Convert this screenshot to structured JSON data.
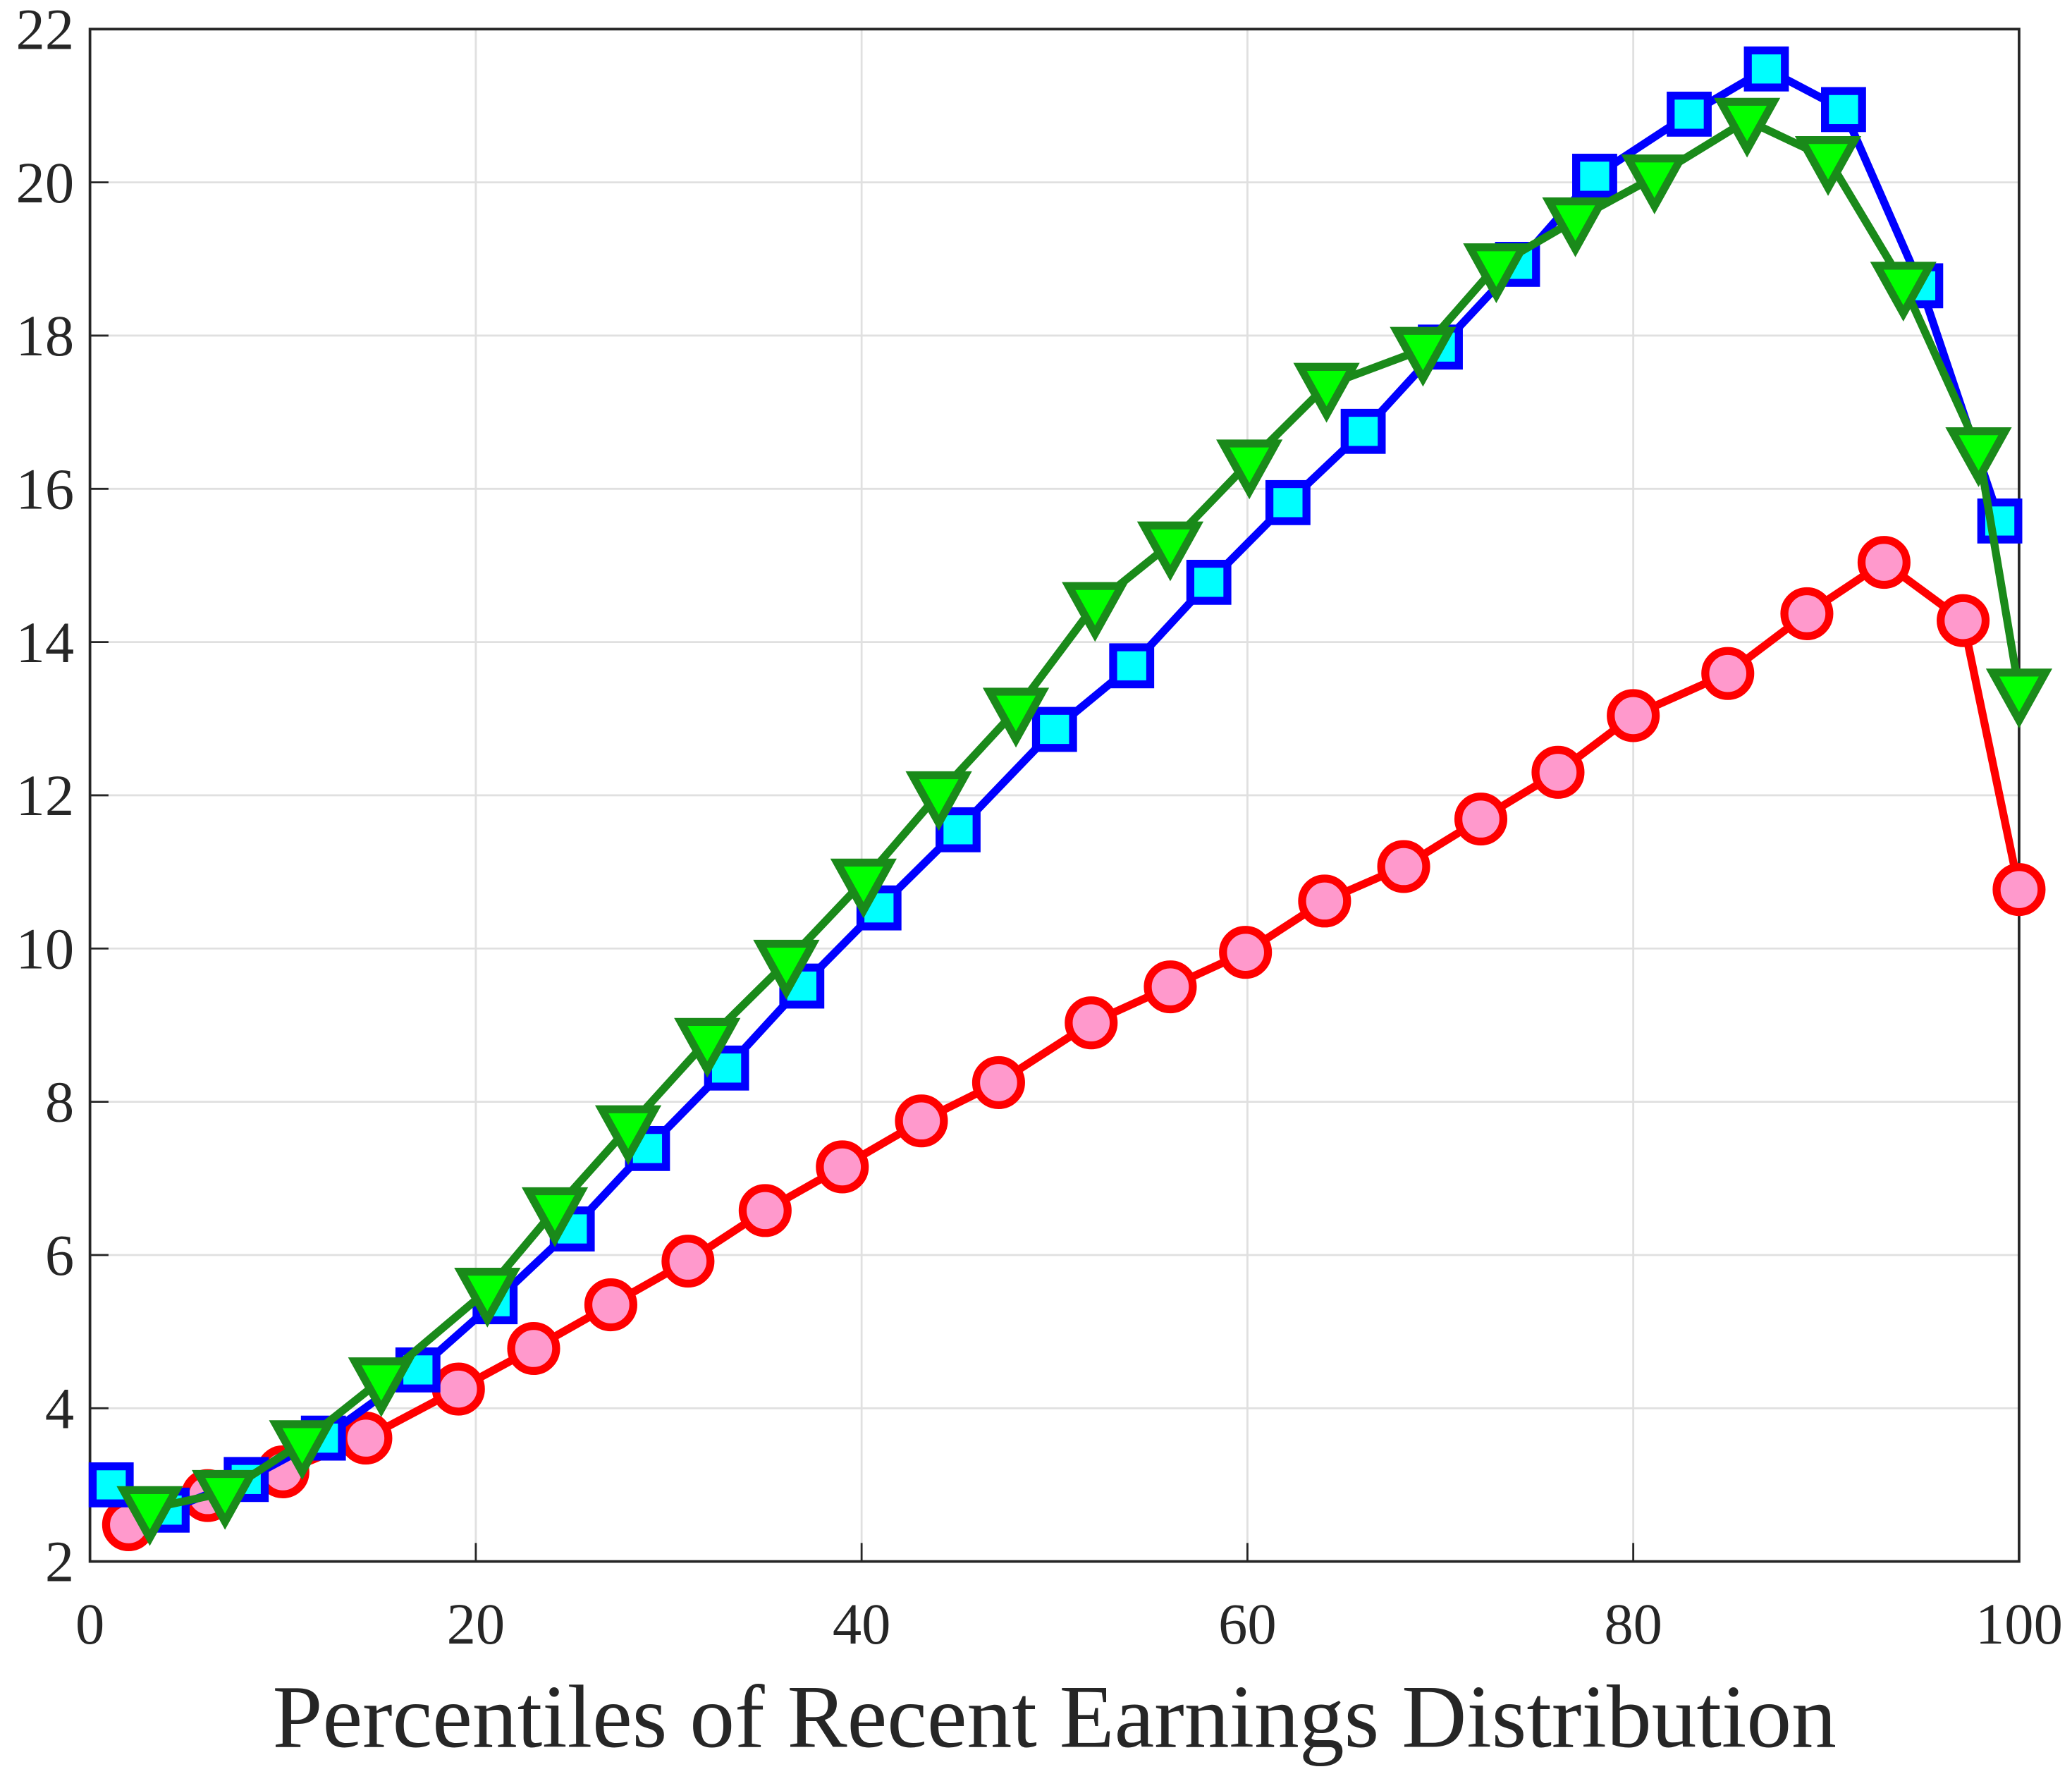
{
  "chart_data": {
    "type": "line",
    "xlabel": "Percentiles of Recent Earnings Distribution",
    "xlim": [
      0,
      100
    ],
    "xticks": [
      0,
      20,
      40,
      60,
      80,
      100
    ],
    "ylim": [
      2,
      22
    ],
    "yticks": [
      2,
      4,
      6,
      8,
      10,
      12,
      14,
      16,
      18,
      20,
      22
    ],
    "grid": true,
    "series": [
      {
        "color": "#ff0000",
        "marker": "circle",
        "marker_color": "#ff99cc",
        "x": [
          2.0,
          6.1,
          10.0,
          14.3,
          19.1,
          23.0,
          27.0,
          31.0,
          35.0,
          39.0,
          43.1,
          47.1,
          51.9,
          56.0,
          59.9,
          64.0,
          68.1,
          72.1,
          76.1,
          80.0,
          84.9,
          89.0,
          93.0,
          97.1,
          100
        ],
        "values": [
          2.48,
          2.86,
          3.17,
          3.61,
          4.25,
          4.78,
          5.35,
          5.92,
          6.58,
          7.15,
          7.75,
          8.25,
          9.03,
          9.5,
          9.95,
          10.62,
          11.07,
          11.69,
          12.3,
          13.04,
          13.59,
          14.37,
          15.04,
          14.28,
          10.77
        ]
      },
      {
        "color": "#0000ff",
        "marker": "square",
        "marker_color": "#00ffff",
        "x": [
          1.1,
          4.0,
          8.1,
          12.1,
          17.0,
          21.0,
          25.0,
          28.9,
          33.0,
          36.9,
          40.9,
          45.0,
          50.0,
          54.0,
          58.0,
          62.1,
          66.0,
          70.0,
          74.0,
          78.0,
          82.9,
          86.9,
          90.9,
          94.9,
          99.0
        ],
        "values": [
          3.0,
          2.67,
          3.07,
          3.61,
          4.5,
          5.39,
          6.34,
          7.39,
          8.44,
          9.51,
          10.53,
          11.55,
          12.86,
          13.69,
          14.78,
          15.82,
          16.75,
          17.85,
          18.93,
          20.08,
          20.89,
          21.48,
          20.95,
          18.65,
          15.58
        ]
      },
      {
        "color": "#1a8a1a",
        "marker": "triangle-down",
        "marker_color": "#00ff00",
        "x": [
          3.1,
          7.0,
          11.0,
          15.1,
          20.6,
          24.1,
          27.9,
          32.0,
          36.1,
          40.1,
          44.0,
          48.0,
          52.1,
          56.0,
          60.1,
          64.1,
          69.1,
          72.9,
          77.0,
          81.1,
          85.9,
          90.1,
          94.0,
          97.9,
          100
        ],
        "values": [
          2.69,
          2.9,
          3.55,
          4.37,
          5.54,
          6.59,
          7.66,
          8.8,
          9.82,
          10.88,
          12.02,
          13.11,
          14.49,
          15.28,
          16.35,
          17.35,
          17.82,
          18.91,
          19.51,
          20.07,
          20.81,
          20.31,
          18.67,
          16.51,
          13.36
        ]
      }
    ]
  }
}
